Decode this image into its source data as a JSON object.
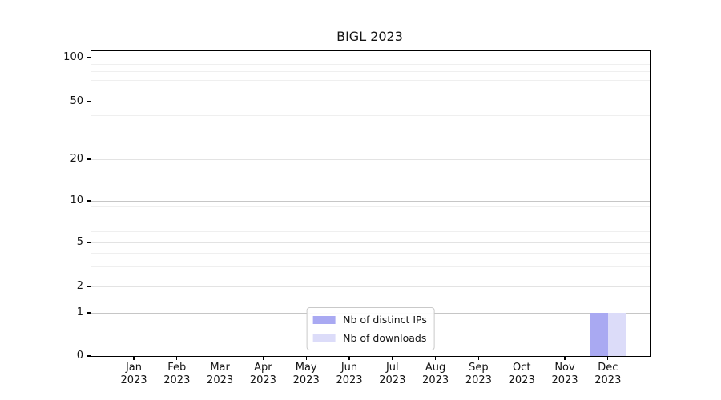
{
  "figure": {
    "background": "#ffffff",
    "axis_color": "#000000"
  },
  "chart_data": {
    "type": "bar",
    "title": "BIGL 2023",
    "categories": [
      "Jan 2023",
      "Feb 2023",
      "Mar 2023",
      "Apr 2023",
      "May 2023",
      "Jun 2023",
      "Jul 2023",
      "Aug 2023",
      "Sep 2023",
      "Oct 2023",
      "Nov 2023",
      "Dec 2023"
    ],
    "series": [
      {
        "name": "Nb of distinct IPs",
        "color": "#a9a9f2",
        "values": [
          0,
          0,
          0,
          0,
          0,
          0,
          0,
          0,
          0,
          0,
          0,
          1
        ]
      },
      {
        "name": "Nb of downloads",
        "color": "#dcdcf9",
        "values": [
          0,
          0,
          0,
          0,
          0,
          0,
          0,
          0,
          0,
          0,
          0,
          1
        ]
      }
    ],
    "xlabel": "",
    "ylabel": "",
    "yscale": "symlog",
    "ylim": [
      0,
      100
    ],
    "yticks": [
      0,
      1,
      2,
      5,
      10,
      20,
      50,
      100
    ],
    "minor_yticks": [
      3,
      4,
      6,
      7,
      8,
      9,
      30,
      40,
      60,
      70,
      80,
      90
    ],
    "grid": true,
    "legend_position": "lower center",
    "grid_colors": {
      "decade": "#c6c6c6",
      "major": "#e3e3e3",
      "minor": "#efefef"
    }
  }
}
